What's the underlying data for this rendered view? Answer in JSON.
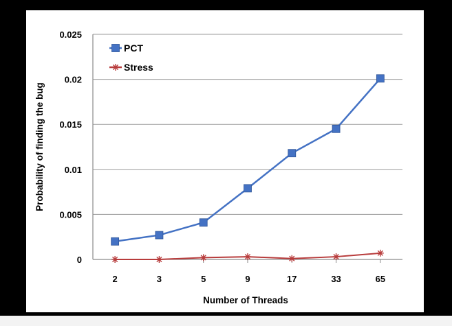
{
  "chart_data": {
    "type": "line",
    "categories": [
      "2",
      "3",
      "5",
      "9",
      "17",
      "33",
      "65"
    ],
    "series": [
      {
        "name": "PCT",
        "values": [
          0.002,
          0.0027,
          0.0041,
          0.0079,
          0.0118,
          0.0145,
          0.0201
        ],
        "color": "#4472c4",
        "marker": "square"
      },
      {
        "name": "Stress",
        "values": [
          0.0,
          0.0,
          0.0002,
          0.0003,
          0.0001,
          0.0003,
          0.0007
        ],
        "color": "#b83c3c",
        "marker": "star"
      }
    ],
    "title": "",
    "xlabel": "Number of Threads",
    "ylabel": "Probability of finding the bug",
    "ylim": [
      0,
      0.025
    ],
    "yticks": [
      "0",
      "0.005",
      "0.01",
      "0.015",
      "0.02",
      "0.025"
    ],
    "grid": true,
    "legend": "top-left"
  }
}
